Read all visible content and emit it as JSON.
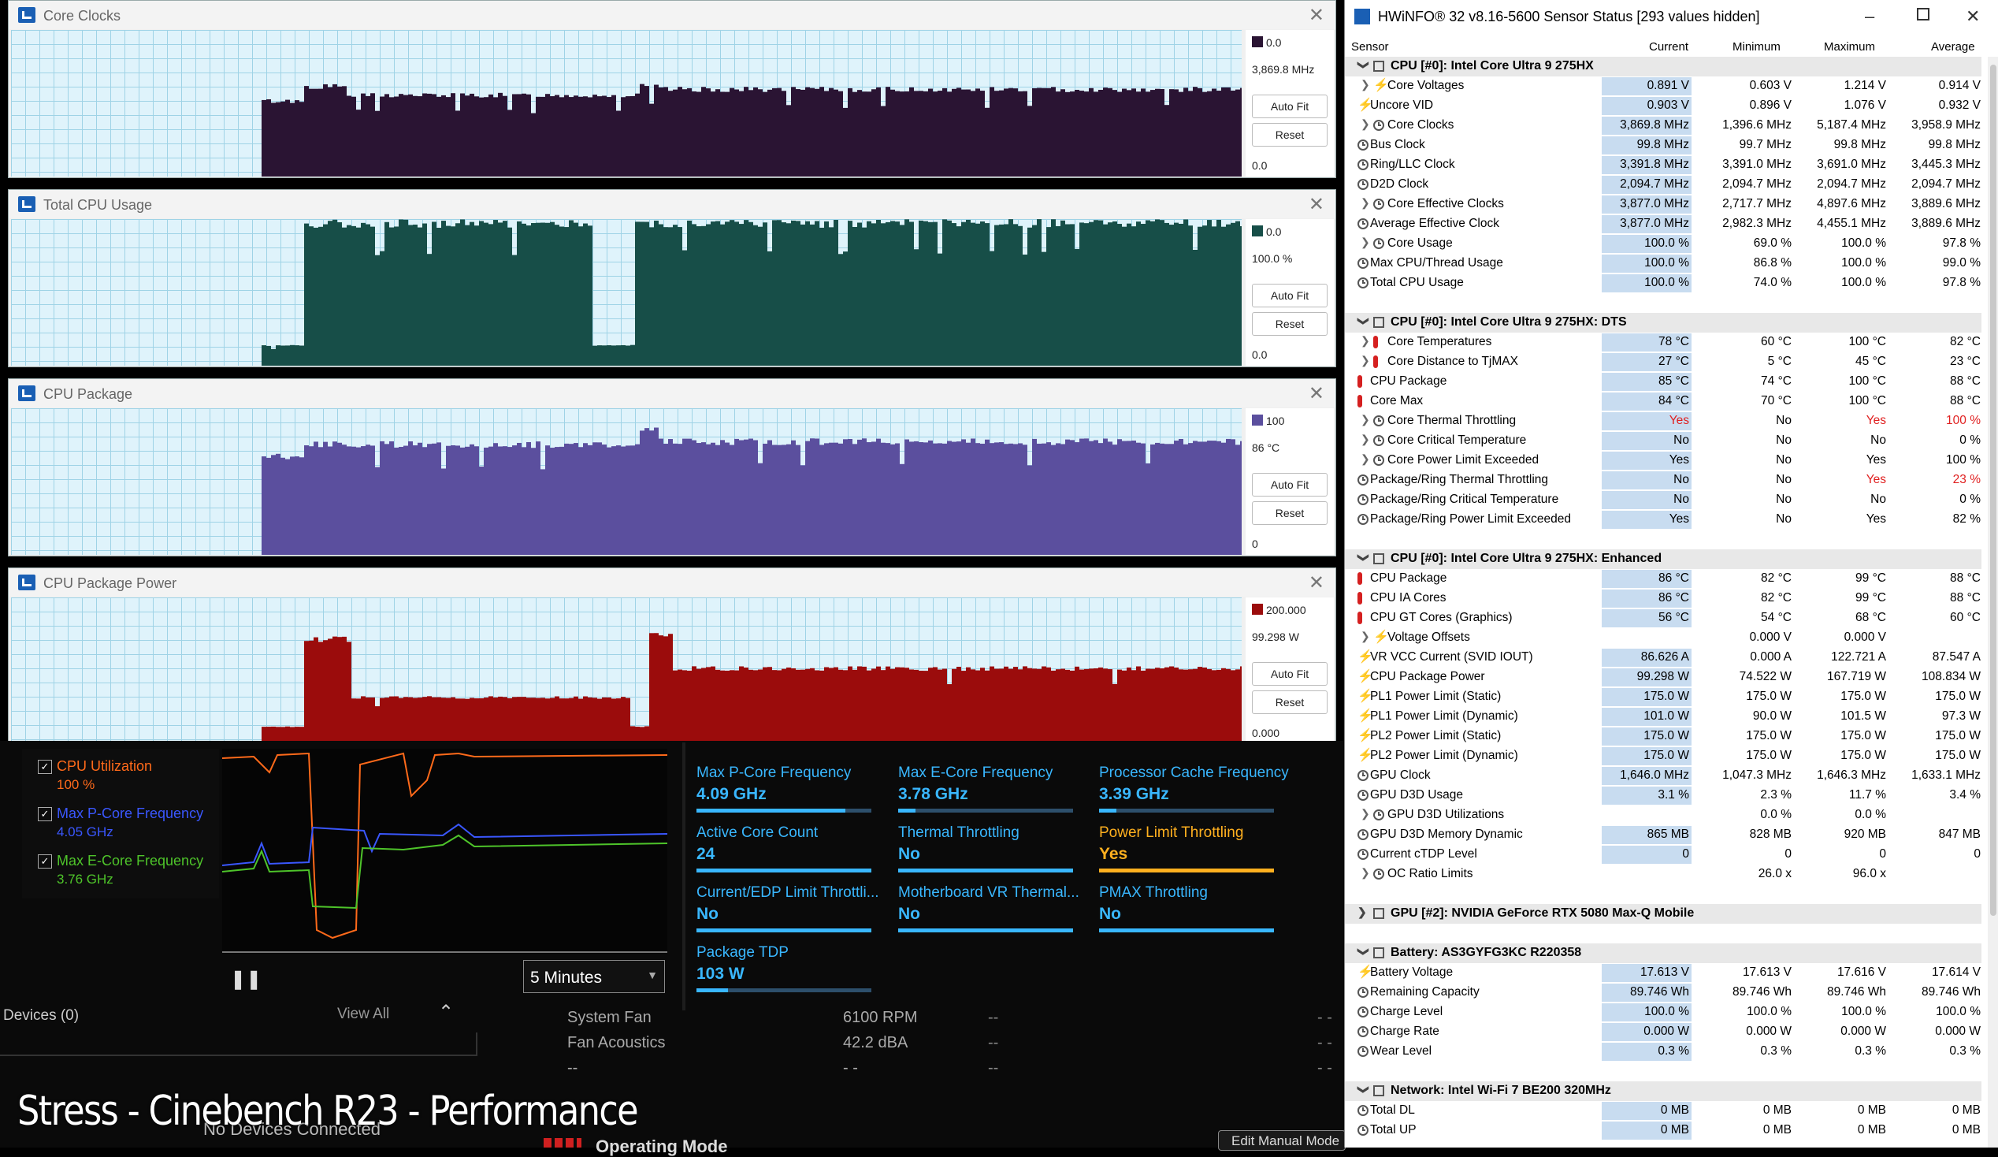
{
  "graphs": [
    {
      "title": "Core Clocks",
      "top_val": "0.0",
      "cur_val": "3,869.8 MHz",
      "min_val": "0.0",
      "fill": "#2a1433",
      "swatch": "#2a1433",
      "autofit": "Auto Fit",
      "reset": "Reset",
      "profile": {
        "baseline": 0.45,
        "start": 0.2,
        "plateaus": [
          [
            0.2,
            0.235,
            0.52
          ],
          [
            0.235,
            0.27,
            0.62
          ],
          [
            0.27,
            0.51,
            0.56
          ],
          [
            0.51,
            0.525,
            0.62
          ],
          [
            0.525,
            1.0,
            0.6
          ]
        ]
      }
    },
    {
      "title": "Total CPU Usage",
      "top_val": "0.0",
      "cur_val": "100.0 %",
      "min_val": "0.0",
      "fill": "#174e48",
      "swatch": "#174e48",
      "autofit": "Auto Fit",
      "reset": "Reset",
      "profile": {
        "baseline": 0.1,
        "start": 0.2,
        "plateaus": [
          [
            0.2,
            0.235,
            0.14
          ],
          [
            0.235,
            0.47,
            0.98
          ],
          [
            0.47,
            0.505,
            0.14
          ],
          [
            0.505,
            1.0,
            0.98
          ]
        ]
      }
    },
    {
      "title": "CPU Package",
      "top_val": "100",
      "cur_val": "86 °C",
      "min_val": "0",
      "fill": "#5b4f9e",
      "swatch": "#5b4f9e",
      "autofit": "Auto Fit",
      "reset": "Reset",
      "profile": {
        "baseline": 0.6,
        "start": 0.2,
        "plateaus": [
          [
            0.2,
            0.235,
            0.68
          ],
          [
            0.235,
            0.51,
            0.76
          ],
          [
            0.51,
            0.525,
            0.86
          ],
          [
            0.525,
            1.0,
            0.78
          ]
        ]
      }
    },
    {
      "title": "CPU Package Power",
      "top_val": "200.000",
      "cur_val": "99.298 W",
      "min_val": "0.000",
      "fill": "#9b0c0c",
      "swatch": "#9b0c0c",
      "autofit": "Auto Fit",
      "reset": "Reset",
      "profile": {
        "baseline": 0.08,
        "start": 0.2,
        "plateaus": [
          [
            0.2,
            0.235,
            0.12
          ],
          [
            0.235,
            0.275,
            0.72
          ],
          [
            0.275,
            0.5,
            0.32
          ],
          [
            0.5,
            0.515,
            0.12
          ],
          [
            0.515,
            0.535,
            0.75
          ],
          [
            0.535,
            1.0,
            0.52
          ]
        ]
      }
    }
  ],
  "lenovo": {
    "legend": [
      {
        "label": "CPU Utilization",
        "value": "100 %",
        "color": "#ff6a1a"
      },
      {
        "label": "Max P-Core Frequency",
        "value": "4.05 GHz",
        "color": "#3a57ff"
      },
      {
        "label": "Max E-Core Frequency",
        "value": "3.76 GHz",
        "color": "#4ec42a"
      }
    ],
    "timespan": "5 Minutes",
    "tiles": [
      {
        "label": "Max P-Core Frequency",
        "value": "4.09 GHz",
        "fill": 0.85,
        "warn": false
      },
      {
        "label": "Max E-Core Frequency",
        "value": "3.78 GHz",
        "fill": 0.1,
        "warn": false
      },
      {
        "label": "Processor Cache Frequency",
        "value": "3.39 GHz",
        "fill": 0.1,
        "warn": false
      },
      {
        "label": "Active Core Count",
        "value": "24",
        "fill": 1.0,
        "warn": false
      },
      {
        "label": "Thermal Throttling",
        "value": "No",
        "fill": 1.0,
        "warn": false
      },
      {
        "label": "Power Limit Throttling",
        "value": "Yes",
        "fill": 1.0,
        "warn": true
      },
      {
        "label": "Current/EDP Limit Throttli...",
        "value": "No",
        "fill": 1.0,
        "warn": false
      },
      {
        "label": "Motherboard VR Thermal...",
        "value": "No",
        "fill": 1.0,
        "warn": false
      },
      {
        "label": "PMAX Throttling",
        "value": "No",
        "fill": 1.0,
        "warn": false
      },
      {
        "label": "Package TDP",
        "value": "103 W",
        "fill": 0.18,
        "warn": false
      }
    ],
    "devices": "Devices (0)",
    "view_all": "View All",
    "no_devices": "No Devices Connected",
    "fans": [
      {
        "name": "System Fan",
        "value": "6100 RPM",
        "a": "--",
        "b": "- -"
      },
      {
        "name": "Fan Acoustics",
        "value": "42.2 dBA",
        "a": "--",
        "b": "- -"
      },
      {
        "name": "--",
        "value": "- -",
        "a": "--",
        "b": "- -"
      }
    ],
    "caption": "Stress - Cinebench R23 - Performance",
    "operating_mode": "Operating Mode",
    "edit_manual": "Edit Manual Mode"
  },
  "hwinfo": {
    "title": "HWiNFO® 32 v8.16-5600 Sensor Status [293 values hidden]",
    "columns": [
      "Sensor",
      "Current",
      "Minimum",
      "Maximum",
      "Average"
    ],
    "groups": [
      {
        "name": "CPU [#0]: Intel Core Ultra 9 275HX",
        "rows": [
          {
            "exp": true,
            "icon": "bolt",
            "name": "Core Voltages",
            "cur": "0.891 V",
            "min": "0.603 V",
            "max": "1.214 V",
            "avg": "0.914 V"
          },
          {
            "exp": false,
            "icon": "bolt",
            "name": "Uncore VID",
            "cur": "0.903 V",
            "min": "0.896 V",
            "max": "1.076 V",
            "avg": "0.932 V"
          },
          {
            "exp": true,
            "icon": "clk",
            "name": "Core Clocks",
            "cur": "3,869.8 MHz",
            "min": "1,396.6 MHz",
            "max": "5,187.4 MHz",
            "avg": "3,958.9 MHz"
          },
          {
            "exp": false,
            "icon": "clk",
            "name": "Bus Clock",
            "cur": "99.8 MHz",
            "min": "99.7 MHz",
            "max": "99.8 MHz",
            "avg": "99.8 MHz"
          },
          {
            "exp": false,
            "icon": "clk",
            "name": "Ring/LLC Clock",
            "cur": "3,391.8 MHz",
            "min": "3,391.0 MHz",
            "max": "3,691.0 MHz",
            "avg": "3,445.3 MHz"
          },
          {
            "exp": false,
            "icon": "clk",
            "name": "D2D Clock",
            "cur": "2,094.7 MHz",
            "min": "2,094.7 MHz",
            "max": "2,094.7 MHz",
            "avg": "2,094.7 MHz"
          },
          {
            "exp": true,
            "icon": "clk",
            "name": "Core Effective Clocks",
            "cur": "3,877.0 MHz",
            "min": "2,717.7 MHz",
            "max": "4,897.6 MHz",
            "avg": "3,889.6 MHz"
          },
          {
            "exp": false,
            "icon": "clk",
            "name": "Average Effective Clock",
            "cur": "3,877.0 MHz",
            "min": "2,982.3 MHz",
            "max": "4,455.1 MHz",
            "avg": "3,889.6 MHz"
          },
          {
            "exp": true,
            "icon": "clk",
            "name": "Core Usage",
            "cur": "100.0 %",
            "min": "69.0 %",
            "max": "100.0 %",
            "avg": "97.8 %"
          },
          {
            "exp": false,
            "icon": "clk",
            "name": "Max CPU/Thread Usage",
            "cur": "100.0 %",
            "min": "86.8 %",
            "max": "100.0 %",
            "avg": "99.0 %"
          },
          {
            "exp": false,
            "icon": "clk",
            "name": "Total CPU Usage",
            "cur": "100.0 %",
            "min": "74.0 %",
            "max": "100.0 %",
            "avg": "97.8 %"
          }
        ]
      },
      {
        "name": "CPU [#0]: Intel Core Ultra 9 275HX: DTS",
        "rows": [
          {
            "exp": true,
            "icon": "th",
            "name": "Core Temperatures",
            "cur": "78 °C",
            "min": "60 °C",
            "max": "100 °C",
            "avg": "82 °C"
          },
          {
            "exp": true,
            "icon": "th",
            "name": "Core Distance to TjMAX",
            "cur": "27 °C",
            "min": "5 °C",
            "max": "45 °C",
            "avg": "23 °C"
          },
          {
            "exp": false,
            "icon": "th",
            "name": "CPU Package",
            "cur": "85 °C",
            "min": "74 °C",
            "max": "100 °C",
            "avg": "88 °C"
          },
          {
            "exp": false,
            "icon": "th",
            "name": "Core Max",
            "cur": "84 °C",
            "min": "70 °C",
            "max": "100 °C",
            "avg": "88 °C"
          },
          {
            "exp": true,
            "icon": "clk",
            "name": "Core Thermal Throttling",
            "cur": "Yes",
            "min": "No",
            "max": "Yes",
            "avg": "100 %",
            "red": true
          },
          {
            "exp": true,
            "icon": "clk",
            "name": "Core Critical Temperature",
            "cur": "No",
            "min": "No",
            "max": "No",
            "avg": "0 %"
          },
          {
            "exp": true,
            "icon": "clk",
            "name": "Core Power Limit Exceeded",
            "cur": "Yes",
            "min": "No",
            "max": "Yes",
            "avg": "100 %"
          },
          {
            "exp": false,
            "icon": "clk",
            "name": "Package/Ring Thermal Throttling",
            "cur": "No",
            "min": "No",
            "max": "Yes",
            "avg": "23 %",
            "redmax": true
          },
          {
            "exp": false,
            "icon": "clk",
            "name": "Package/Ring Critical Temperature",
            "cur": "No",
            "min": "No",
            "max": "No",
            "avg": "0 %"
          },
          {
            "exp": false,
            "icon": "clk",
            "name": "Package/Ring Power Limit Exceeded",
            "cur": "Yes",
            "min": "No",
            "max": "Yes",
            "avg": "82 %"
          }
        ]
      },
      {
        "name": "CPU [#0]: Intel Core Ultra 9 275HX: Enhanced",
        "rows": [
          {
            "exp": false,
            "icon": "th",
            "name": "CPU Package",
            "cur": "86 °C",
            "min": "82 °C",
            "max": "99 °C",
            "avg": "88 °C"
          },
          {
            "exp": false,
            "icon": "th",
            "name": "CPU IA Cores",
            "cur": "86 °C",
            "min": "82 °C",
            "max": "99 °C",
            "avg": "88 °C"
          },
          {
            "exp": false,
            "icon": "th",
            "name": "CPU GT Cores (Graphics)",
            "cur": "56 °C",
            "min": "54 °C",
            "max": "68 °C",
            "avg": "60 °C"
          },
          {
            "exp": true,
            "icon": "bolt",
            "name": "Voltage Offsets",
            "cur": "",
            "min": "0.000 V",
            "max": "0.000 V",
            "avg": ""
          },
          {
            "exp": false,
            "icon": "bolt",
            "name": "VR VCC Current (SVID IOUT)",
            "cur": "86.626 A",
            "min": "0.000 A",
            "max": "122.721 A",
            "avg": "87.547 A"
          },
          {
            "exp": false,
            "icon": "bolt",
            "name": "CPU Package Power",
            "cur": "99.298 W",
            "min": "74.522 W",
            "max": "167.719 W",
            "avg": "108.834 W"
          },
          {
            "exp": false,
            "icon": "bolt",
            "name": "PL1 Power Limit (Static)",
            "cur": "175.0 W",
            "min": "175.0 W",
            "max": "175.0 W",
            "avg": "175.0 W"
          },
          {
            "exp": false,
            "icon": "bolt",
            "name": "PL1 Power Limit (Dynamic)",
            "cur": "101.0 W",
            "min": "90.0 W",
            "max": "101.5 W",
            "avg": "97.3 W"
          },
          {
            "exp": false,
            "icon": "bolt",
            "name": "PL2 Power Limit (Static)",
            "cur": "175.0 W",
            "min": "175.0 W",
            "max": "175.0 W",
            "avg": "175.0 W"
          },
          {
            "exp": false,
            "icon": "bolt",
            "name": "PL2 Power Limit (Dynamic)",
            "cur": "175.0 W",
            "min": "175.0 W",
            "max": "175.0 W",
            "avg": "175.0 W"
          },
          {
            "exp": false,
            "icon": "clk",
            "name": "GPU Clock",
            "cur": "1,646.0 MHz",
            "min": "1,047.3 MHz",
            "max": "1,646.3 MHz",
            "avg": "1,633.1 MHz"
          },
          {
            "exp": false,
            "icon": "clk",
            "name": "GPU D3D Usage",
            "cur": "3.1 %",
            "min": "2.3 %",
            "max": "11.7 %",
            "avg": "3.4 %"
          },
          {
            "exp": true,
            "icon": "clk",
            "name": "GPU D3D Utilizations",
            "cur": "",
            "min": "0.0 %",
            "max": "0.0 %",
            "avg": ""
          },
          {
            "exp": false,
            "icon": "clk",
            "name": "GPU D3D Memory Dynamic",
            "cur": "865 MB",
            "min": "828 MB",
            "max": "920 MB",
            "avg": "847 MB"
          },
          {
            "exp": false,
            "icon": "clk",
            "name": "Current cTDP Level",
            "cur": "0",
            "min": "0",
            "max": "0",
            "avg": "0"
          },
          {
            "exp": true,
            "icon": "clk",
            "name": "OC Ratio Limits",
            "cur": "",
            "min": "26.0 x",
            "max": "96.0 x",
            "avg": ""
          }
        ]
      },
      {
        "name": "GPU [#2]: NVIDIA  GeForce RTX 5080 Max-Q Mobile",
        "collapsed": true,
        "rows": []
      },
      {
        "name": "Battery: AS3GYFG3KC R220358",
        "rows": [
          {
            "exp": false,
            "icon": "bolt",
            "name": "Battery Voltage",
            "cur": "17.613 V",
            "min": "17.613 V",
            "max": "17.616 V",
            "avg": "17.614 V"
          },
          {
            "exp": false,
            "icon": "clk",
            "name": "Remaining Capacity",
            "cur": "89.746 Wh",
            "min": "89.746 Wh",
            "max": "89.746 Wh",
            "avg": "89.746 Wh"
          },
          {
            "exp": false,
            "icon": "clk",
            "name": "Charge Level",
            "cur": "100.0 %",
            "min": "100.0 %",
            "max": "100.0 %",
            "avg": "100.0 %"
          },
          {
            "exp": false,
            "icon": "clk",
            "name": "Charge Rate",
            "cur": "0.000 W",
            "min": "0.000 W",
            "max": "0.000 W",
            "avg": "0.000 W"
          },
          {
            "exp": false,
            "icon": "clk",
            "name": "Wear Level",
            "cur": "0.3 %",
            "min": "0.3 %",
            "max": "0.3 %",
            "avg": "0.3 %"
          }
        ]
      },
      {
        "name": "Network: Intel Wi-Fi 7 BE200 320MHz",
        "rows": [
          {
            "exp": false,
            "icon": "clk",
            "name": "Total DL",
            "cur": "0 MB",
            "min": "0 MB",
            "max": "0 MB",
            "avg": "0 MB"
          },
          {
            "exp": false,
            "icon": "clk",
            "name": "Total UP",
            "cur": "0 MB",
            "min": "0 MB",
            "max": "0 MB",
            "avg": "0 MB"
          }
        ]
      }
    ]
  }
}
